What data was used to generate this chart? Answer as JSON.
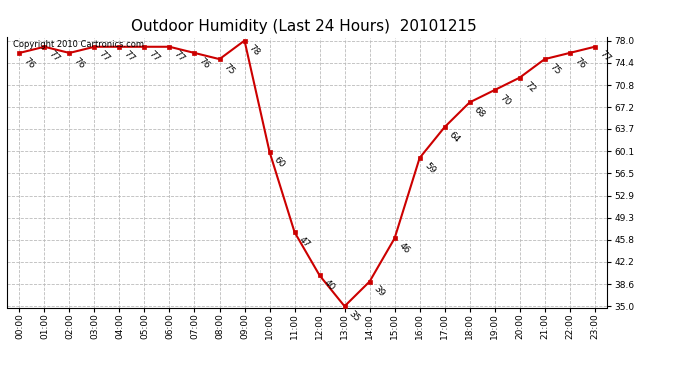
{
  "title": "Outdoor Humidity (Last 24 Hours)  20101215",
  "copyright": "Copyright 2010 Cartronics.com",
  "hours": [
    "00:00",
    "01:00",
    "02:00",
    "03:00",
    "04:00",
    "05:00",
    "06:00",
    "07:00",
    "08:00",
    "09:00",
    "10:00",
    "11:00",
    "12:00",
    "13:00",
    "14:00",
    "15:00",
    "16:00",
    "17:00",
    "18:00",
    "19:00",
    "20:00",
    "21:00",
    "22:00",
    "23:00"
  ],
  "values": [
    76,
    77,
    76,
    77,
    77,
    77,
    77,
    76,
    75,
    78,
    60,
    47,
    40,
    35,
    39,
    46,
    59,
    64,
    68,
    70,
    72,
    75,
    76,
    77
  ],
  "line_color": "#cc0000",
  "marker_color": "#cc0000",
  "bg_color": "#ffffff",
  "grid_color": "#bbbbbb",
  "ylim_min": 35.0,
  "ylim_max": 78.0,
  "yticks": [
    35.0,
    38.6,
    42.2,
    45.8,
    49.3,
    52.9,
    56.5,
    60.1,
    63.7,
    67.2,
    70.8,
    74.4,
    78.0
  ],
  "title_fontsize": 11,
  "tick_fontsize": 6.5,
  "annotation_fontsize": 6.5,
  "copyright_fontsize": 6
}
